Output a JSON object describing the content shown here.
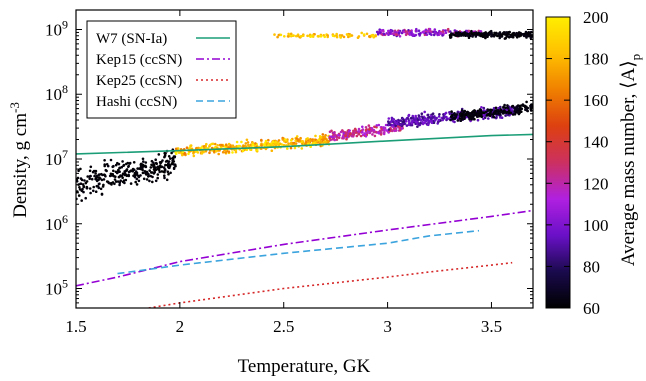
{
  "chart_data": {
    "type": "scatter",
    "xlabel": "Temperature, GK",
    "ylabel": "Density, g cm",
    "ylabel_sup": "-3",
    "xlim": [
      1.5,
      3.7
    ],
    "ylim": [
      50000,
      2000000000
    ],
    "yscale": "log",
    "xticks": [
      1.5,
      2,
      2.5,
      3,
      3.5
    ],
    "xtick_labels": [
      "1.5",
      "2",
      "2.5",
      "3",
      "3.5"
    ],
    "yticks": [
      100000,
      1000000,
      10000000,
      100000000,
      1000000000
    ],
    "ytick_bases": [
      "10",
      "10",
      "10",
      "10",
      "10"
    ],
    "ytick_exps": [
      "5",
      "6",
      "7",
      "8",
      "9"
    ],
    "legend_position": "top-left",
    "series": [
      {
        "name": "W7 (SN-Ia)",
        "style": "solid",
        "color": "#1b9e77",
        "points": [
          [
            1.5,
            12000000
          ],
          [
            2.0,
            13500000
          ],
          [
            2.5,
            15500000
          ],
          [
            3.0,
            19000000
          ],
          [
            3.5,
            23000000
          ],
          [
            3.7,
            24000000
          ]
        ]
      },
      {
        "name": "Kep15 (ccSN)",
        "style": "dash-dot",
        "color": "#9400d3",
        "points": [
          [
            1.5,
            110000
          ],
          [
            1.7,
            150000
          ],
          [
            2.0,
            260000
          ],
          [
            2.5,
            480000
          ],
          [
            3.0,
            800000
          ],
          [
            3.5,
            1300000
          ],
          [
            3.7,
            1600000
          ]
        ]
      },
      {
        "name": "Kep25 (ccSN)",
        "style": "dotted",
        "color": "#d62728",
        "points": [
          [
            1.85,
            50000
          ],
          [
            2.0,
            60000
          ],
          [
            2.5,
            100000
          ],
          [
            3.0,
            150000
          ],
          [
            3.2,
            180000
          ],
          [
            3.5,
            230000
          ],
          [
            3.6,
            250000
          ]
        ]
      },
      {
        "name": "Hashi (ccSN)",
        "style": "dashed",
        "color": "#3ba3dd",
        "points": [
          [
            1.7,
            170000
          ],
          [
            2.0,
            230000
          ],
          [
            2.5,
            350000
          ],
          [
            3.0,
            500000
          ],
          [
            3.2,
            650000
          ],
          [
            3.44,
            780000
          ]
        ]
      }
    ],
    "scatter_bands": [
      {
        "x_range": [
          1.5,
          1.98
        ],
        "logy_center": [
          6.6,
          6.95
        ],
        "logy_spread": 0.32,
        "A_range": [
          60,
          64
        ],
        "count": 300
      },
      {
        "x_range": [
          1.98,
          2.72
        ],
        "logy_center": [
          7.1,
          7.3
        ],
        "logy_spread": 0.12,
        "A_range": [
          162,
          200
        ],
        "count": 380
      },
      {
        "x_range": [
          2.72,
          3.08
        ],
        "logy_center": [
          7.35,
          7.5
        ],
        "logy_spread": 0.1,
        "A_range": [
          108,
          136
        ],
        "count": 200
      },
      {
        "x_range": [
          3.0,
          3.62
        ],
        "logy_center": [
          7.55,
          7.75
        ],
        "logy_spread": 0.13,
        "A_range": [
          82,
          100
        ],
        "count": 360
      },
      {
        "x_range": [
          3.3,
          3.7
        ],
        "logy_center": [
          7.65,
          7.8
        ],
        "logy_spread": 0.11,
        "A_range": [
          60,
          66
        ],
        "count": 220
      },
      {
        "x_range": [
          2.45,
          2.95
        ],
        "logy_center": [
          8.9,
          8.9
        ],
        "logy_spread": 0.05,
        "A_range": [
          170,
          200
        ],
        "count": 80
      },
      {
        "x_range": [
          2.95,
          3.45
        ],
        "logy_center": [
          8.95,
          8.95
        ],
        "logy_spread": 0.07,
        "A_range": [
          90,
          130
        ],
        "count": 200
      },
      {
        "x_range": [
          3.3,
          3.7
        ],
        "logy_center": [
          8.92,
          8.92
        ],
        "logy_spread": 0.07,
        "A_range": [
          60,
          66
        ],
        "count": 220
      }
    ],
    "colorbar": {
      "label": "Average mass number, ⟨A⟩",
      "label_sub": "p",
      "range": [
        60,
        200
      ],
      "ticks": [
        60,
        80,
        100,
        120,
        140,
        160,
        180,
        200
      ],
      "tick_labels": [
        "60",
        "80",
        "100",
        "120",
        "140",
        "160",
        "180",
        "200"
      ],
      "colormap": [
        "#000000",
        "#1a0a4d",
        "#6a10c8",
        "#b020e0",
        "#cc3060",
        "#dd4010",
        "#f08000",
        "#ffc000",
        "#ffee00"
      ]
    }
  }
}
